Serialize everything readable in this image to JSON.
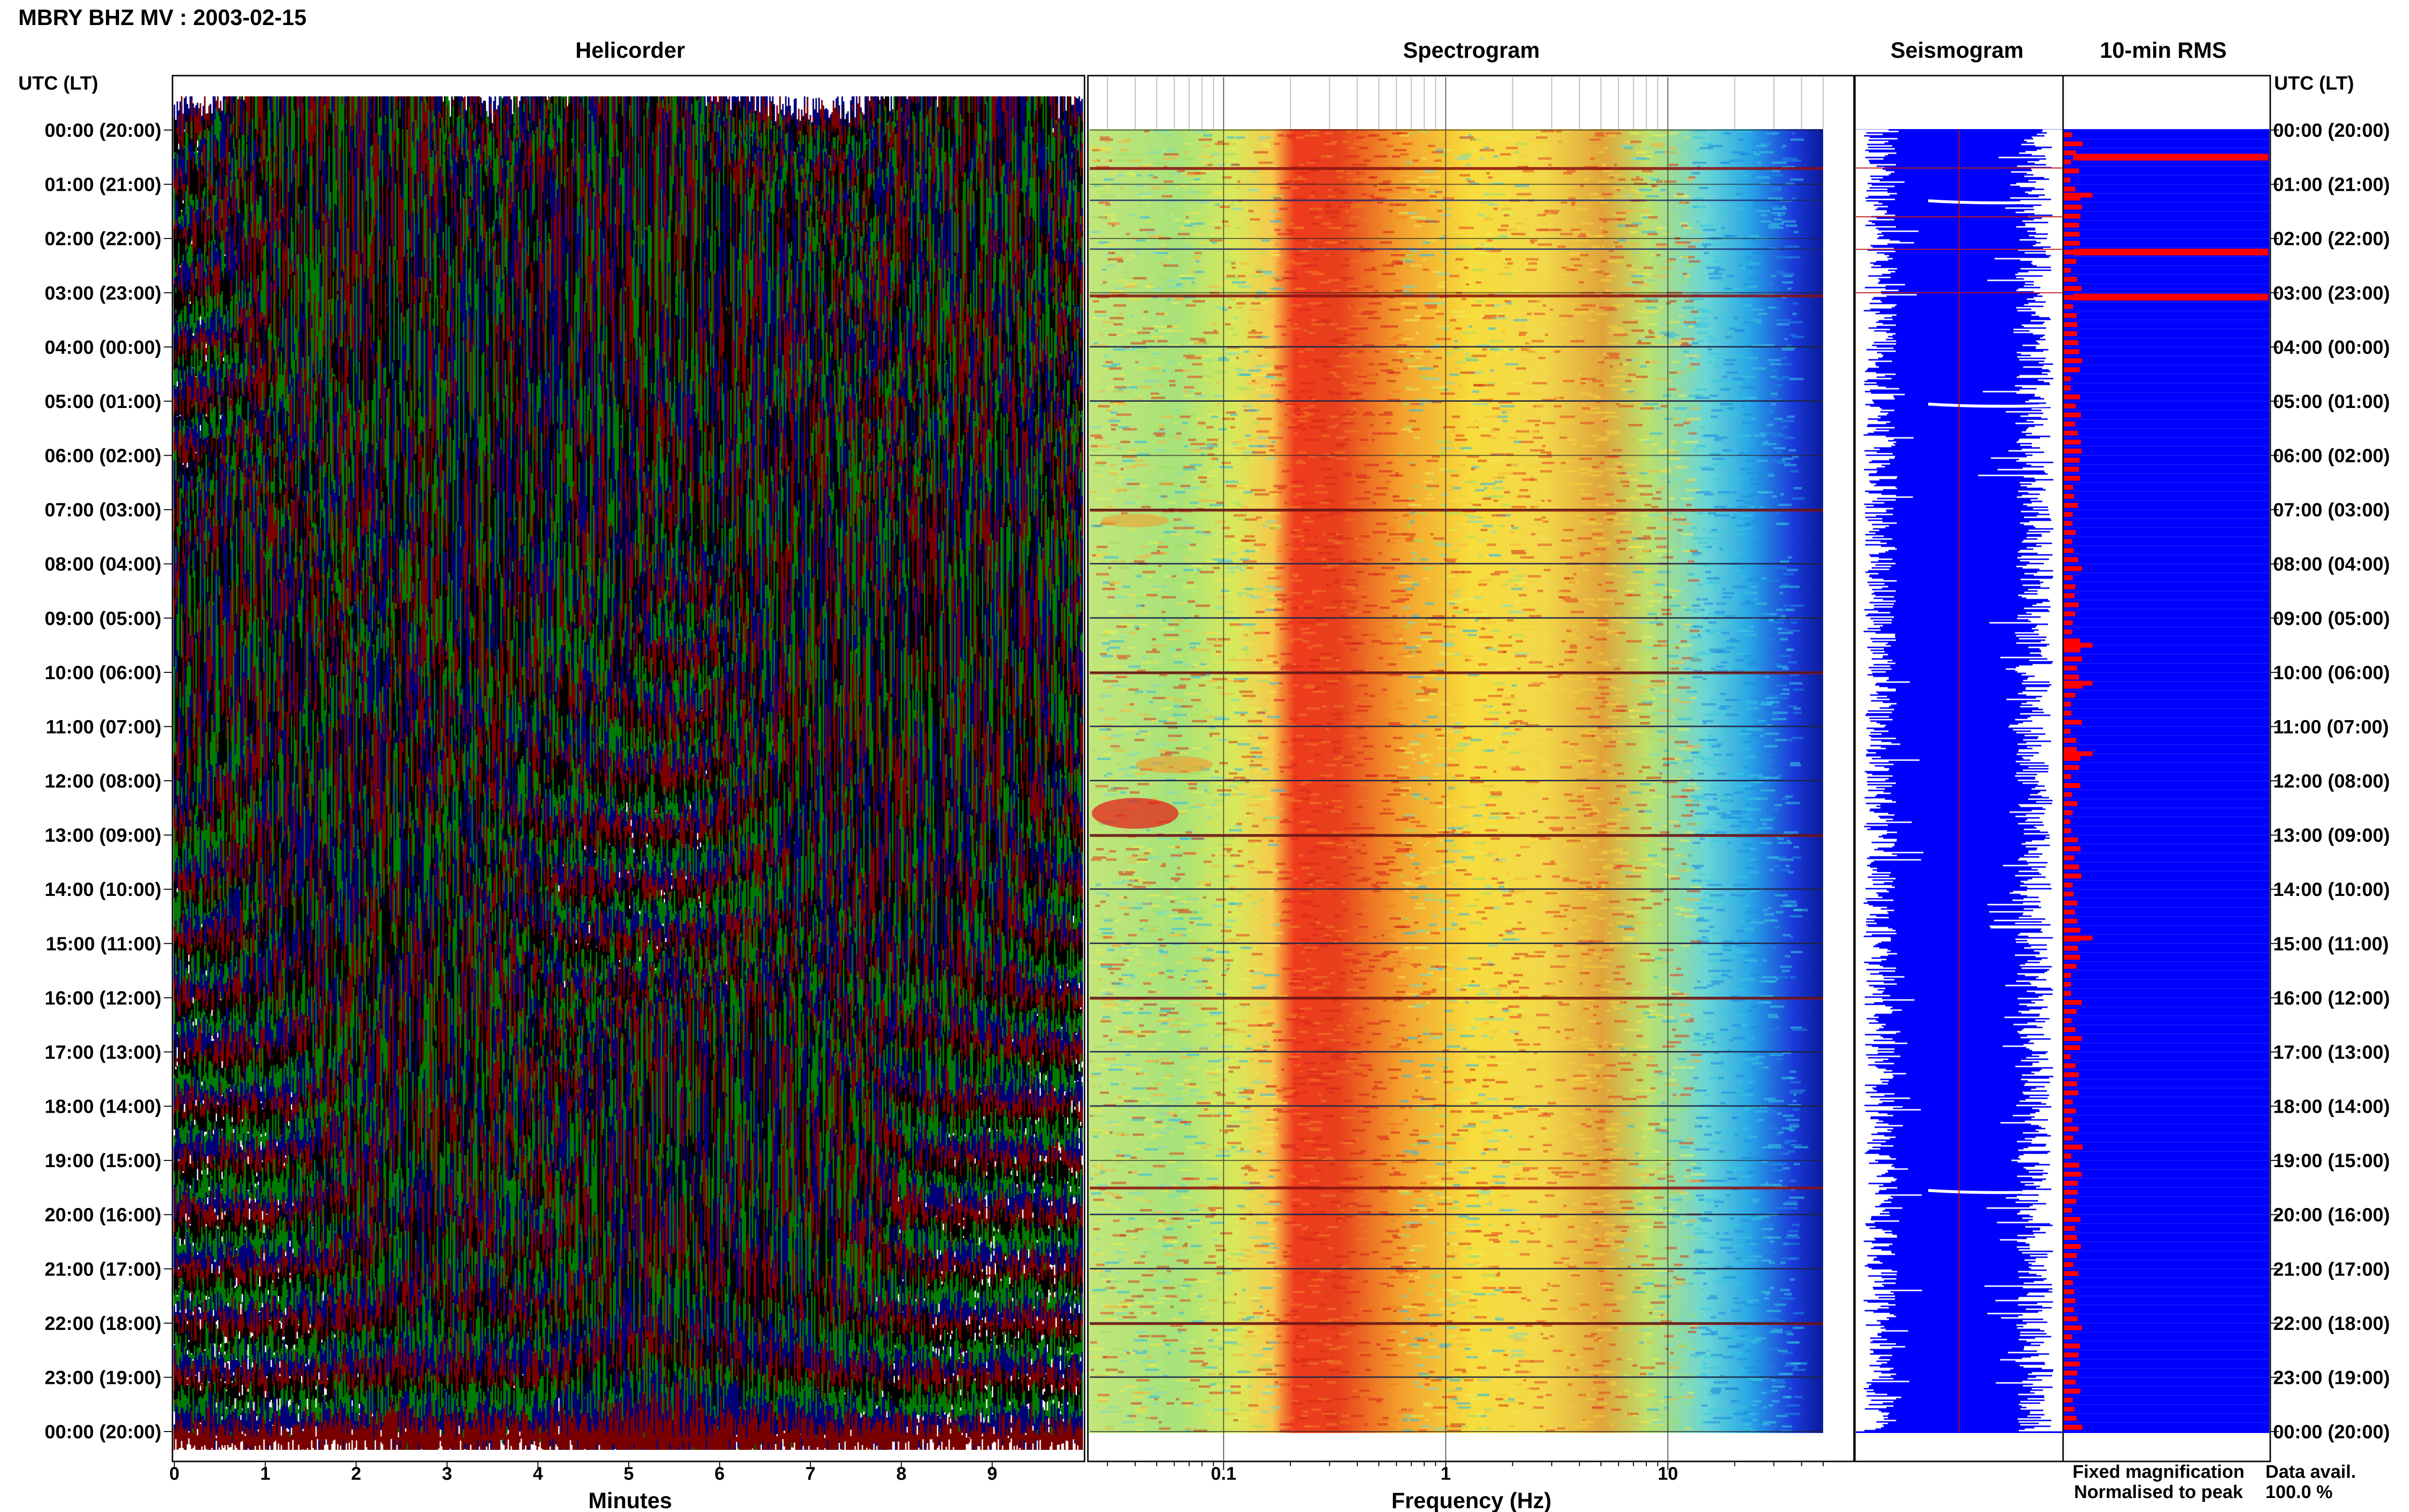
{
  "header": {
    "station_title": "MBRY BHZ MV : 2003-02-15",
    "utc_label_left": "UTC (LT)",
    "utc_label_right": "UTC (LT)"
  },
  "panels": {
    "helicorder": "Helicorder",
    "spectrogram": "Spectrogram",
    "seismogram": "Seismogram",
    "rms": "10-min RMS"
  },
  "footer": {
    "minutes_label": "Minutes",
    "frequency_label": "Frequency (Hz)",
    "fixed_magnification": "Fixed magnification",
    "normalised_to_peak": "Normalised to peak",
    "data_avail_label": "Data avail.",
    "data_avail_value": "100.0 %"
  },
  "colors": {
    "heli_traces": [
      "#00007a",
      "#7a0000",
      "#000000",
      "#007a00"
    ],
    "seismogram_fill": "#0000ff",
    "rms_fixed": "#0000ff",
    "rms_normalised": "#ff0000",
    "legend_fixed": "#0000dd",
    "legend_normalised": "#ee0000"
  },
  "chart_data": [
    {
      "type": "helicorder",
      "title": "Helicorder",
      "xlabel": "Minutes",
      "x_ticks": [
        0,
        1,
        2,
        3,
        4,
        5,
        6,
        7,
        8,
        9
      ],
      "xlim": [
        0,
        10
      ],
      "hour_labels": [
        "00:00 (20:00)",
        "01:00 (21:00)",
        "02:00 (22:00)",
        "03:00 (23:00)",
        "04:00 (00:00)",
        "05:00 (01:00)",
        "06:00 (02:00)",
        "07:00 (03:00)",
        "08:00 (04:00)",
        "09:00 (05:00)",
        "10:00 (06:00)",
        "11:00 (07:00)",
        "12:00 (08:00)",
        "13:00 (09:00)",
        "14:00 (10:00)",
        "15:00 (11:00)",
        "16:00 (12:00)",
        "17:00 (13:00)",
        "18:00 (14:00)",
        "19:00 (15:00)",
        "20:00 (16:00)",
        "21:00 (17:00)",
        "22:00 (18:00)",
        "23:00 (19:00)",
        "00:00 (20:00)"
      ]
    },
    {
      "type": "heatmap",
      "title": "Spectrogram",
      "xlabel": "Frequency (Hz)",
      "x_scale": "log",
      "x_tick_labels": [
        "0.1",
        "1",
        "10"
      ],
      "x_tick_values": [
        0.1,
        1,
        10
      ],
      "xlim": [
        0.025,
        50
      ],
      "colormap": "jet",
      "band_peak_hz": [
        0.2,
        0.4
      ],
      "secondary_peak_hz": 4
    },
    {
      "type": "area",
      "title": "Seismogram",
      "color": "fixed magnification",
      "spikes_utc": [
        "01:20",
        "05:05",
        "19:35"
      ]
    },
    {
      "type": "bar",
      "title": "10-min RMS",
      "series": [
        {
          "name": "Fixed magnification",
          "values": []
        },
        {
          "name": "Normalised to peak",
          "peak_rows_utc": [
            "00:30",
            "02:15",
            "03:05"
          ]
        }
      ]
    }
  ]
}
